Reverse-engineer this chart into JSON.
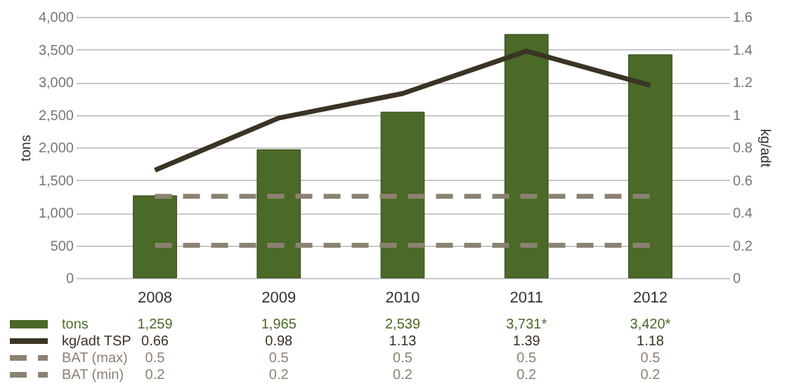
{
  "chart_data": {
    "type": "bar",
    "categories": [
      "2008",
      "2009",
      "2010",
      "2011",
      "2012"
    ],
    "ylabel": "tons",
    "y2label": "kg/adt",
    "ylim": [
      0,
      4000
    ],
    "yticks": [
      0,
      500,
      {
        "value": 1000,
        "label": "1,000"
      },
      {
        "value": 1500,
        "label": "1,500"
      },
      {
        "value": 2000,
        "label": "2,000"
      },
      {
        "value": 2500,
        "label": "2,500"
      },
      {
        "value": 3000,
        "label": "3,000"
      },
      {
        "value": 3500,
        "label": "3,500"
      },
      {
        "value": 4000,
        "label": "4,000"
      }
    ],
    "y2lim": [
      0,
      1.6
    ],
    "y2ticks": [
      0,
      0.2,
      0.4,
      0.6,
      0.8,
      1,
      1.2,
      1.4,
      1.6
    ],
    "grid": "y",
    "legend": "bottom",
    "marker": "none",
    "series": [
      {
        "name": "tons",
        "color": "#4b6a27",
        "values": [
          1259,
          1965,
          2539,
          3731,
          3420
        ],
        "value_labels": [
          "1,259",
          "1,965",
          "2,539",
          "3,731*",
          "3,420*"
        ]
      },
      {
        "name": "kg/adt TSP",
        "type": "line",
        "axis": "y2",
        "line_style": "solid",
        "color": "#3b3424",
        "values": [
          0.66,
          0.98,
          1.13,
          1.39,
          1.18
        ],
        "value_labels": [
          "0.66",
          "0.98",
          "1.13",
          "1.39",
          "1.18"
        ]
      },
      {
        "name": "BAT (max)",
        "type": "line",
        "axis": "y2",
        "line_style": "dashed",
        "color": "#8c8272",
        "values": [
          0.5,
          0.5,
          0.5,
          0.5,
          0.5
        ],
        "value_labels": [
          "0.5",
          "0.5",
          "0.5",
          "0.5",
          "0.5"
        ]
      },
      {
        "name": "BAT (min)",
        "type": "line",
        "axis": "y2",
        "line_style": "dashed",
        "color": "#8c8272",
        "values": [
          0.2,
          0.2,
          0.2,
          0.2,
          0.2
        ],
        "value_labels": [
          "0.2",
          "0.2",
          "0.2",
          "0.2",
          "0.2"
        ]
      }
    ]
  }
}
